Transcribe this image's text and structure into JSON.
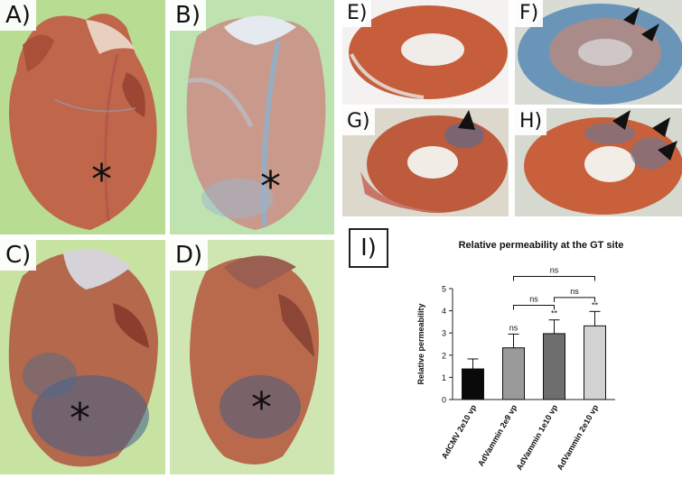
{
  "panels": {
    "A": {
      "label": "A)"
    },
    "B": {
      "label": "B)"
    },
    "C": {
      "label": "C)"
    },
    "D": {
      "label": "D)"
    },
    "E": {
      "label": "E)"
    },
    "F": {
      "label": "F)"
    },
    "G": {
      "label": "G)"
    },
    "H": {
      "label": "H)"
    },
    "I": {
      "label": "I)"
    }
  },
  "markers": {
    "asterisk": "*"
  },
  "colors": {
    "myocardium": "#c56a4c",
    "blue_stain": "#6d8fb3",
    "green_background": "#b9dc93",
    "bar_1": "#0a0a0a",
    "bar_2": "#9a9a9a",
    "bar_3": "#6e6e6e",
    "bar_4": "#d2d2d2"
  },
  "chart_data": {
    "type": "bar",
    "title": "Relative permeability at the GT site",
    "ylabel": "Relative permeability",
    "xlabel": "",
    "ylim": [
      0,
      5
    ],
    "yticks": [
      "0",
      "1",
      "2",
      "3",
      "4",
      "5"
    ],
    "categories": [
      "AdCMV 2e10 vp",
      "AdVammin 2e9 vp",
      "AdVammin 1e10 vp",
      "AdVammin 2e10 vp"
    ],
    "values": [
      1.38,
      2.33,
      2.97,
      3.32
    ],
    "errors": [
      0.45,
      0.62,
      0.62,
      0.65
    ],
    "bar_annotations": [
      "",
      "ns",
      "**",
      "**"
    ],
    "brackets": [
      {
        "from": 1,
        "to": 2,
        "label": "ns"
      },
      {
        "from": 2,
        "to": 3,
        "label": "ns"
      },
      {
        "from": 1,
        "to": 3,
        "label": "ns"
      }
    ]
  }
}
